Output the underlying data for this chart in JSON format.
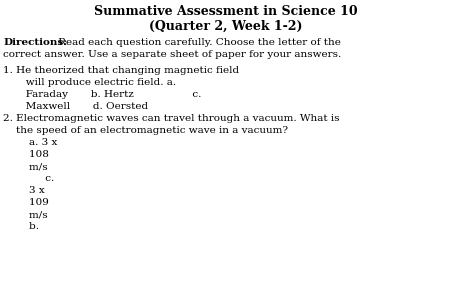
{
  "title_line1": "Summative Assessment in Science 10",
  "title_line2": "(Quarter 2, Week 1-2)",
  "directions_bold": "Directions:",
  "directions_rest": " Read each question carefully. Choose the letter of the",
  "directions_line2": "correct answer. Use a separate sheet of paper for your answers.",
  "q1_line1": "1. He theorized that changing magnetic field",
  "q1_line2": "       will produce electric field. a.",
  "q1_line3": "       Faraday       b. Hertz                  c.",
  "q1_line4": "       Maxwell       d. Oersted",
  "q2_line1": "2. Electromagnetic waves can travel through a vacuum. What is",
  "q2_line2": "    the speed of an electromagnetic wave in a vacuum?",
  "q2_line3": "        a. 3 x",
  "q2_line4": "        108",
  "q2_line5": "        m/s",
  "q2_line6": "             c.",
  "q2_line7": "        3 x",
  "q2_line8": "        109",
  "q2_line9": "        m/s",
  "q2_line10": "        b.",
  "bg_color": "#ffffff",
  "text_color": "#000000",
  "font_size_title": 9.0,
  "font_size_body": 7.5
}
